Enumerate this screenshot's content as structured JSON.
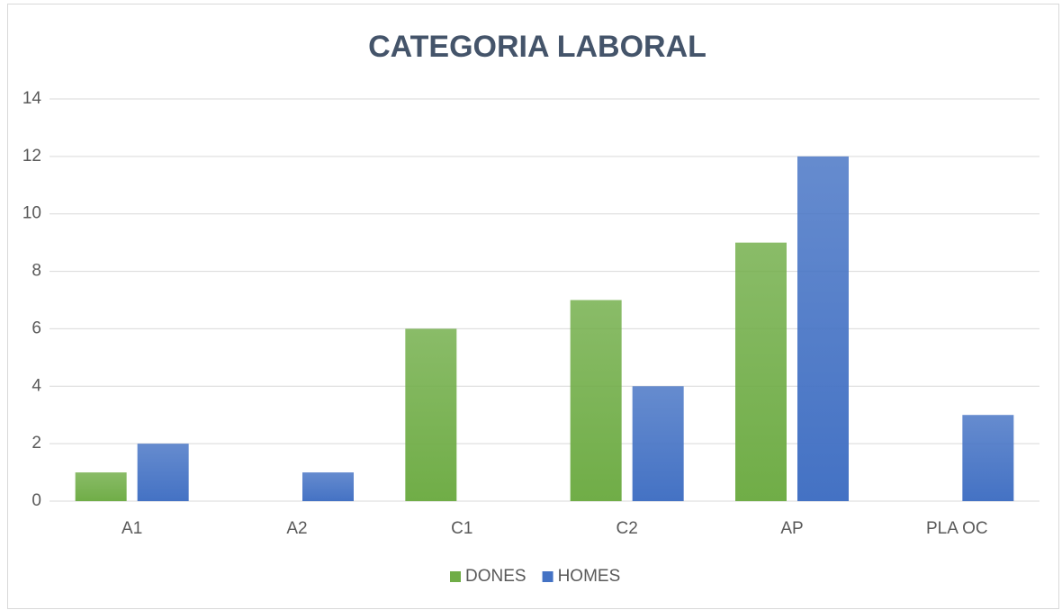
{
  "chart_data": {
    "type": "bar",
    "title": "CATEGORIA LABORAL",
    "categories": [
      "A1",
      "A2",
      "C1",
      "C2",
      "AP",
      "PLA OC"
    ],
    "series": [
      {
        "name": "DONES",
        "color": "#70ad47",
        "values": [
          1,
          0,
          6,
          7,
          9,
          0
        ]
      },
      {
        "name": "HOMES",
        "color": "#4472c4",
        "values": [
          2,
          1,
          0,
          4,
          12,
          3
        ]
      }
    ],
    "ylim": [
      0,
      14
    ],
    "yticks": [
      0,
      2,
      4,
      6,
      8,
      10,
      12,
      14
    ],
    "grid": true,
    "legend": "bottom"
  }
}
